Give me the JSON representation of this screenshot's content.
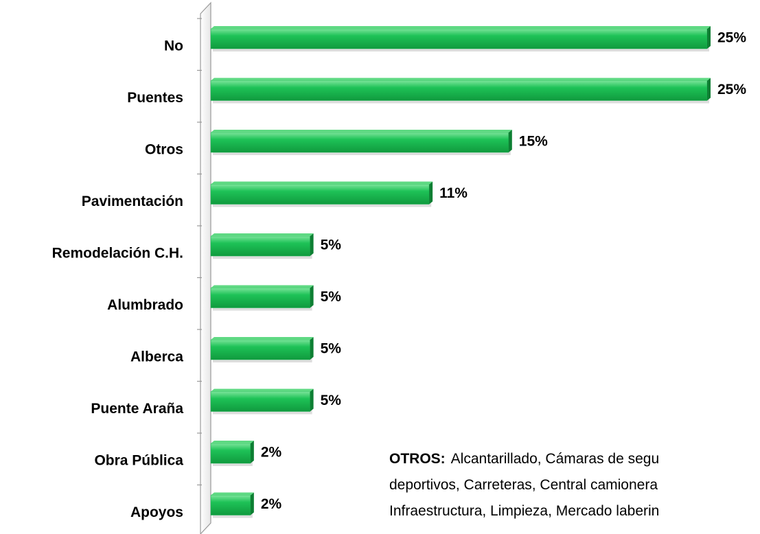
{
  "chart_data": {
    "type": "bar",
    "orientation": "horizontal",
    "categories": [
      "No",
      "Puentes",
      "Otros",
      "Pavimentación",
      "Remodelación C.H.",
      "Alumbrado",
      "Alberca",
      "Puente Araña",
      "Obra Pública",
      "Apoyos"
    ],
    "values": [
      25,
      25,
      15,
      11,
      5,
      5,
      5,
      5,
      2,
      2
    ],
    "value_labels": [
      "25%",
      "25%",
      "15%",
      "11%",
      "5%",
      "5%",
      "5%",
      "5%",
      "2%",
      "2%"
    ],
    "color": "#1db554",
    "xlim": [
      0,
      25
    ],
    "annotation": {
      "heading": "OTROS:",
      "lines": [
        "Alcantarillado, Cámaras de segu",
        "deportivos, Carreteras, Central camionera",
        "Infraestructura, Limpieza, Mercado laberin"
      ]
    }
  }
}
